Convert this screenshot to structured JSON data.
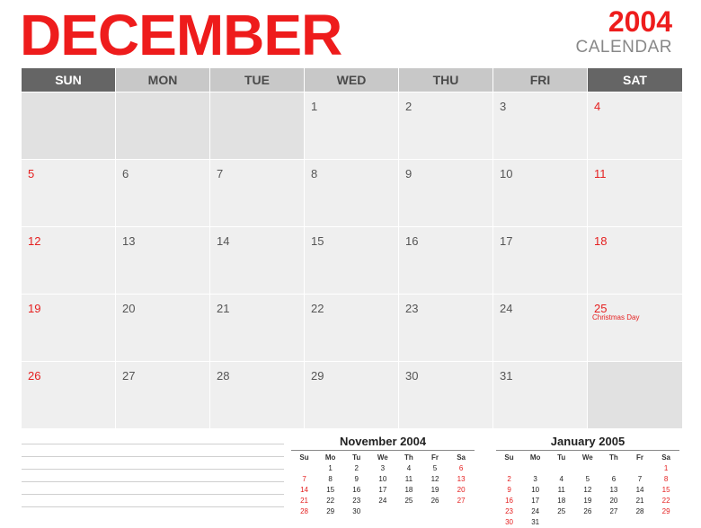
{
  "header": {
    "month": "DECEMBER",
    "year": "2004",
    "subtitle": "CALENDAR"
  },
  "weekdays": [
    "SUN",
    "MON",
    "TUE",
    "WED",
    "THU",
    "FRI",
    "SAT"
  ],
  "weeks": [
    [
      "",
      "",
      "",
      "1",
      "2",
      "3",
      "4"
    ],
    [
      "5",
      "6",
      "7",
      "8",
      "9",
      "10",
      "11"
    ],
    [
      "12",
      "13",
      "14",
      "15",
      "16",
      "17",
      "18"
    ],
    [
      "19",
      "20",
      "21",
      "22",
      "23",
      "24",
      "25"
    ],
    [
      "26",
      "27",
      "28",
      "29",
      "30",
      "31",
      ""
    ]
  ],
  "events": {
    "25": "Christmas Day"
  },
  "colors": {
    "accent": "#ee1c1c",
    "weekend_header": "#656565",
    "weekday_header": "#c8c8c8",
    "cell": "#efefef",
    "empty_cell": "#e1e1e1"
  },
  "mini_calendars": [
    {
      "title": "November 2004",
      "days": [
        "Su",
        "Mo",
        "Tu",
        "We",
        "Th",
        "Fr",
        "Sa"
      ],
      "weeks": [
        [
          "",
          "1",
          "2",
          "3",
          "4",
          "5",
          "6"
        ],
        [
          "7",
          "8",
          "9",
          "10",
          "11",
          "12",
          "13"
        ],
        [
          "14",
          "15",
          "16",
          "17",
          "18",
          "19",
          "20"
        ],
        [
          "21",
          "22",
          "23",
          "24",
          "25",
          "26",
          "27"
        ],
        [
          "28",
          "29",
          "30",
          "",
          "",
          "",
          ""
        ]
      ]
    },
    {
      "title": "January 2005",
      "days": [
        "Su",
        "Mo",
        "Tu",
        "We",
        "Th",
        "Fr",
        "Sa"
      ],
      "weeks": [
        [
          "",
          "",
          "",
          "",
          "",
          "",
          "1"
        ],
        [
          "2",
          "3",
          "4",
          "5",
          "6",
          "7",
          "8"
        ],
        [
          "9",
          "10",
          "11",
          "12",
          "13",
          "14",
          "15"
        ],
        [
          "16",
          "17",
          "18",
          "19",
          "20",
          "21",
          "22"
        ],
        [
          "23",
          "24",
          "25",
          "26",
          "27",
          "28",
          "29"
        ],
        [
          "30",
          "31",
          "",
          "",
          "",
          "",
          ""
        ]
      ]
    }
  ]
}
